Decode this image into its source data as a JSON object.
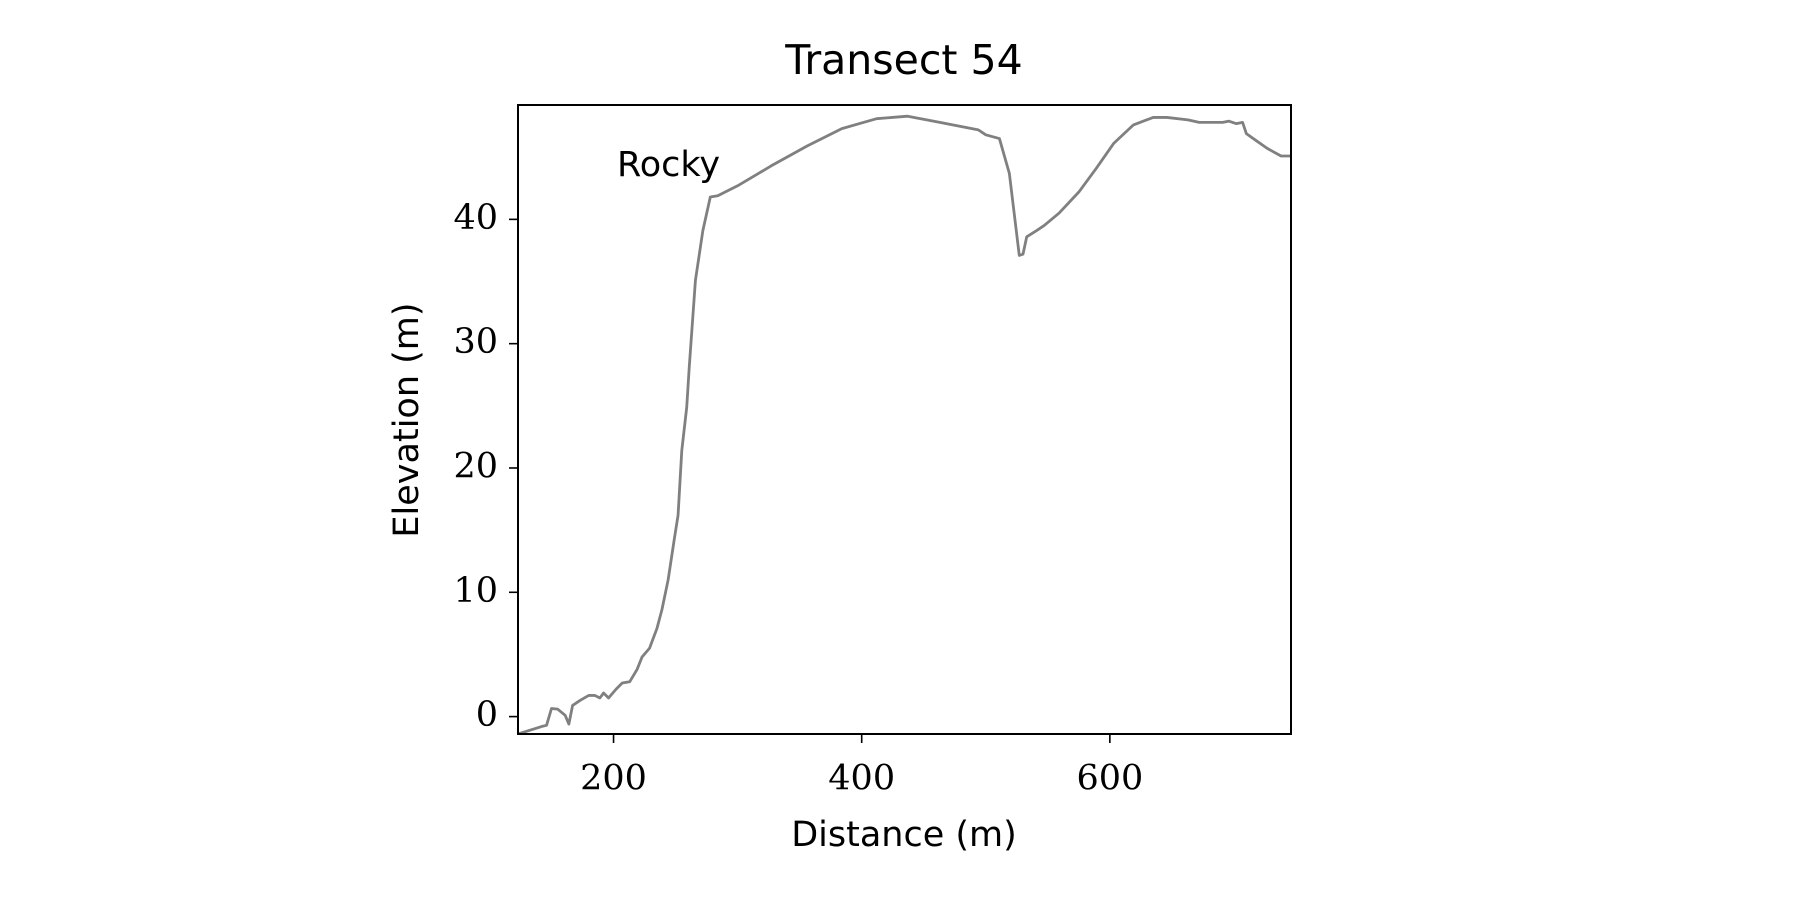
{
  "chart_data": {
    "type": "line",
    "title": "Transect 54",
    "xlabel": "Distance (m)",
    "ylabel": "Elevation (m)",
    "annotation": "Rocky",
    "xlim": [
      123,
      746
    ],
    "ylim": [
      -1.4,
      49.2
    ],
    "xticks": [
      200,
      400,
      600
    ],
    "yticks": [
      0,
      10,
      20,
      30,
      40
    ],
    "grid": false,
    "series": [
      {
        "name": "Transect 54",
        "color": "#808080",
        "x": [
          123,
          142,
          146,
          150,
          155,
          161,
          164,
          167,
          173,
          180,
          185,
          189,
          192,
          196,
          202,
          207,
          213,
          219,
          223,
          229,
          235,
          239,
          244,
          249,
          252,
          255,
          259,
          261,
          266,
          272,
          278,
          284,
          300,
          327,
          356,
          384,
          412,
          437,
          463,
          494,
          500,
          511,
          519,
          527,
          530,
          533,
          541,
          547,
          559,
          575,
          589,
          603,
          619,
          635,
          646,
          663,
          672,
          691,
          696,
          702,
          707,
          710,
          717,
          727,
          738,
          746
        ],
        "values": [
          -1.4,
          -0.8,
          -0.7,
          0.65,
          0.6,
          0.1,
          -0.6,
          0.9,
          1.3,
          1.7,
          1.7,
          1.5,
          1.9,
          1.5,
          2.2,
          2.7,
          2.8,
          3.8,
          4.8,
          5.5,
          7.1,
          8.6,
          11.0,
          14.3,
          16.2,
          21.4,
          24.9,
          28.1,
          35.1,
          39.1,
          41.8,
          41.9,
          42.7,
          44.3,
          45.9,
          47.3,
          48.1,
          48.3,
          47.8,
          47.2,
          46.8,
          46.5,
          43.7,
          37.1,
          37.2,
          38.6,
          39.1,
          39.5,
          40.5,
          42.2,
          44.1,
          46.1,
          47.6,
          48.2,
          48.2,
          48.0,
          47.8,
          47.8,
          47.9,
          47.7,
          47.8,
          46.9,
          46.4,
          45.7,
          45.1,
          45.1
        ]
      }
    ]
  }
}
